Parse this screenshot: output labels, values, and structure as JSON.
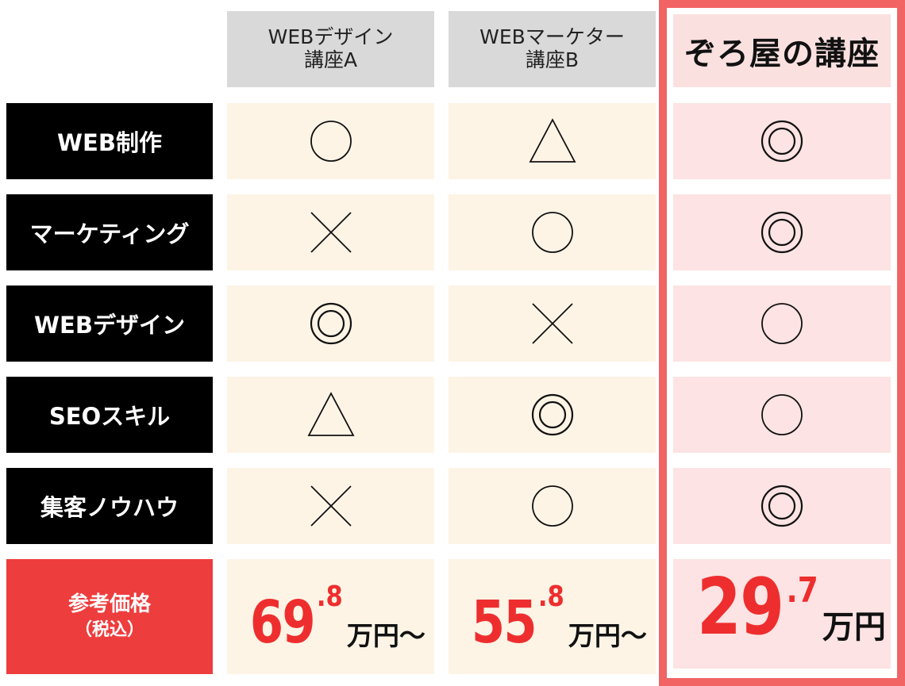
{
  "columns": [
    {
      "line1": "WEBデザイン",
      "line2": "講座A"
    },
    {
      "line1": "WEBマーケター",
      "line2": "講座B"
    },
    {
      "line1": "ぞろ屋の講座",
      "line2": ""
    }
  ],
  "rows": [
    {
      "label": "WEB制作",
      "marks": [
        "circle",
        "triangle",
        "double-circle"
      ]
    },
    {
      "label": "マーケティング",
      "marks": [
        "cross",
        "circle",
        "double-circle"
      ]
    },
    {
      "label": "WEBデザイン",
      "marks": [
        "double-circle",
        "cross",
        "circle"
      ]
    },
    {
      "label": "SEOスキル",
      "marks": [
        "triangle",
        "double-circle",
        "circle"
      ]
    },
    {
      "label": "集客ノウハウ",
      "marks": [
        "cross",
        "circle",
        "double-circle"
      ]
    }
  ],
  "price_row": {
    "label": "参考価格",
    "sublabel": "（税込）",
    "prices": [
      {
        "main": "69",
        "decimal": ".8",
        "unit": "万円〜"
      },
      {
        "main": "55",
        "decimal": ".8",
        "unit": "万円〜"
      },
      {
        "main": "29",
        "decimal": ".7",
        "unit": "万円"
      }
    ]
  },
  "colors": {
    "row_label_bg": "#000000",
    "price_label_bg": "#ee3d3d",
    "highlight_border": "#f26464",
    "highlight_cell_bg": "#fde3e3",
    "cream_cell_bg": "#fdf4e6",
    "header_gray": "#d9d9d9",
    "price_text": "#ee2e2e"
  }
}
